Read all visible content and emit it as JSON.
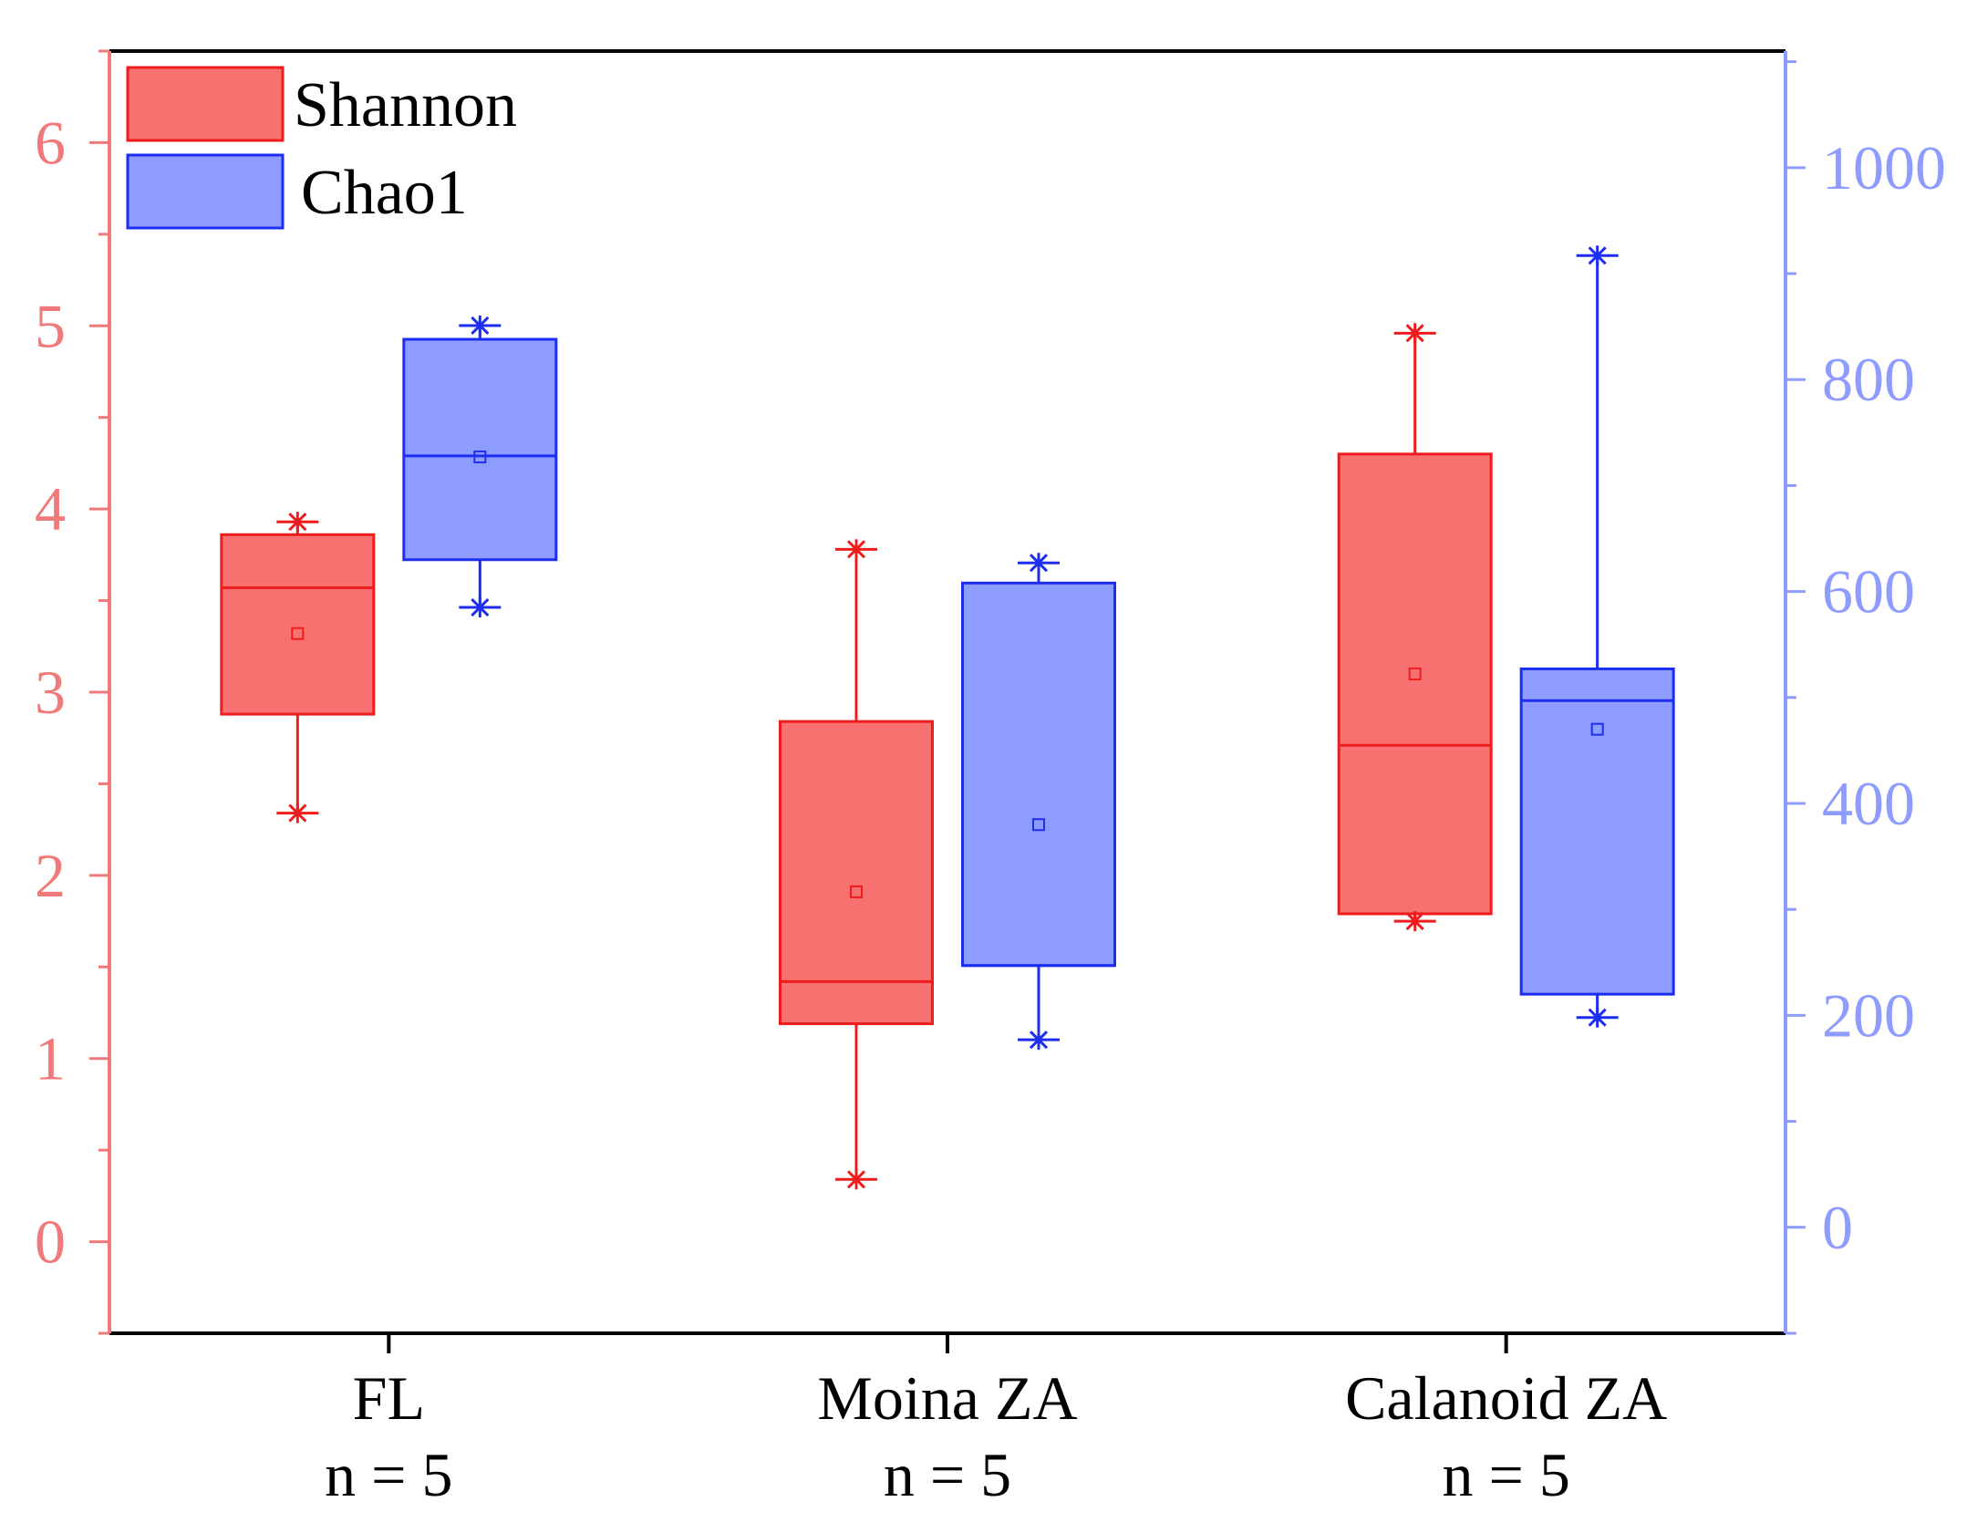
{
  "chart_data": {
    "type": "box",
    "title": "",
    "xlabel": "",
    "ylabel": "",
    "categories": [
      {
        "name": "FL",
        "sublabel": "n = 5"
      },
      {
        "name": "Moina ZA",
        "sublabel": "n = 5"
      },
      {
        "name": "Calanoid ZA",
        "sublabel": "n = 5"
      }
    ],
    "left_axis": {
      "min": -0.5,
      "max": 6.5,
      "ticks": [
        0,
        1,
        2,
        3,
        4,
        5,
        6
      ],
      "tick_labels": [
        "0",
        "1",
        "2",
        "3",
        "4",
        "5",
        "6"
      ],
      "minor_step": 0.5,
      "color": "#f07a7a"
    },
    "right_axis": {
      "min": -100,
      "max": 1110,
      "ticks": [
        0,
        200,
        400,
        600,
        800,
        1000
      ],
      "tick_labels": [
        "0",
        "200",
        "400",
        "600",
        "800",
        "1000"
      ],
      "minor_step": 100,
      "color": "#8f9cff"
    },
    "grid": false,
    "legend": {
      "position": "top-left"
    },
    "series": [
      {
        "name": "Shannon",
        "axis": "left",
        "fill": "#f87171",
        "stroke": "#ee1c1c",
        "boxes": [
          {
            "whisker_low": 2.34,
            "q1": 2.88,
            "median": 3.57,
            "q3": 3.86,
            "whisker_high": 3.93,
            "mean": 3.32,
            "min_marker": 2.34,
            "max_marker": 3.93
          },
          {
            "whisker_low": 0.34,
            "q1": 1.19,
            "median": 1.42,
            "q3": 2.84,
            "whisker_high": 3.78,
            "mean": 1.91,
            "min_marker": 0.34,
            "max_marker": 3.78
          },
          {
            "whisker_low": 1.75,
            "q1": 1.79,
            "median": 2.71,
            "q3": 4.3,
            "whisker_high": 4.96,
            "mean": 3.1,
            "min_marker": 1.75,
            "max_marker": 4.96
          }
        ]
      },
      {
        "name": "Chao1",
        "axis": "right",
        "fill": "#8f9cff",
        "stroke": "#1d2ef0",
        "boxes": [
          {
            "whisker_low": 585,
            "q1": 630,
            "median": 728,
            "q3": 838,
            "whisker_high": 851,
            "mean": 727,
            "min_marker": 585,
            "max_marker": 851
          },
          {
            "whisker_low": 177,
            "q1": 247,
            "median": 247,
            "q3": 608,
            "whisker_high": 627,
            "mean": 380,
            "min_marker": 177,
            "max_marker": 627
          },
          {
            "whisker_low": 198,
            "q1": 220,
            "median": 497,
            "q3": 527,
            "whisker_high": 917,
            "mean": 470,
            "min_marker": 198,
            "max_marker": 917
          }
        ]
      }
    ]
  }
}
